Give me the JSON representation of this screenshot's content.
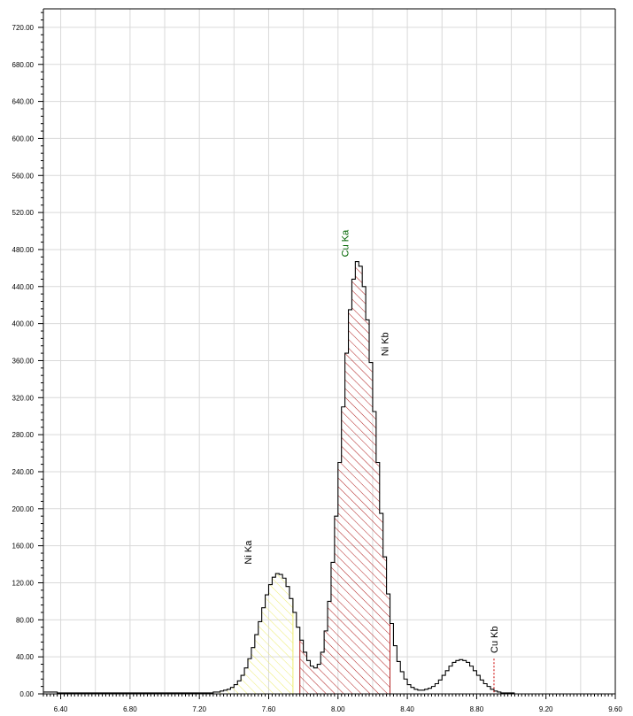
{
  "chart_data": {
    "type": "histogram",
    "title": "",
    "xlabel": "",
    "ylabel": "",
    "xlim": [
      6.3,
      9.6
    ],
    "ylim": [
      0,
      740
    ],
    "x_tick_labels": [
      "6.40",
      "6.80",
      "7.20",
      "7.60",
      "8.00",
      "8.40",
      "8.80",
      "9.20",
      "9.60"
    ],
    "x_ticks": [
      6.4,
      6.8,
      7.2,
      7.6,
      8.0,
      8.4,
      8.8,
      9.2,
      9.6
    ],
    "y_tick_labels": [
      "0.00",
      "40.00",
      "80.00",
      "120.00",
      "160.00",
      "200.00",
      "240.00",
      "280.00",
      "320.00",
      "360.00",
      "400.00",
      "440.00",
      "480.00",
      "520.00",
      "560.00",
      "600.00",
      "640.00",
      "680.00",
      "720.00"
    ],
    "y_ticks": [
      0,
      40,
      80,
      120,
      160,
      200,
      240,
      280,
      320,
      360,
      400,
      440,
      480,
      520,
      560,
      600,
      640,
      680,
      720
    ],
    "bin_width": 0.02,
    "x_start": 6.3,
    "counts": [
      2,
      2,
      2,
      2,
      1,
      1,
      1,
      1,
      1,
      1,
      1,
      1,
      1,
      1,
      1,
      1,
      1,
      1,
      1,
      1,
      1,
      1,
      1,
      1,
      1,
      1,
      1,
      1,
      1,
      1,
      1,
      1,
      1,
      1,
      1,
      1,
      1,
      1,
      1,
      1,
      1,
      1,
      1,
      1,
      1,
      1,
      1,
      1,
      1,
      2,
      2,
      3,
      4,
      5,
      7,
      10,
      14,
      20,
      28,
      38,
      50,
      64,
      78,
      93,
      107,
      118,
      126,
      130,
      129,
      125,
      116,
      103,
      88,
      72,
      58,
      45,
      36,
      30,
      28,
      32,
      45,
      68,
      100,
      142,
      192,
      250,
      310,
      368,
      415,
      448,
      467,
      462,
      440,
      404,
      358,
      305,
      250,
      195,
      148,
      108,
      76,
      52,
      35,
      24,
      16,
      10,
      7,
      5,
      4,
      4,
      5,
      6,
      8,
      11,
      15,
      20,
      25,
      30,
      34,
      36,
      37,
      36,
      34,
      30,
      25,
      20,
      15,
      11,
      8,
      5,
      3,
      2,
      1,
      1,
      1,
      1
    ],
    "regions": [
      {
        "name": "Ni Ka",
        "from": 7.2,
        "to": 7.74,
        "color": "#eded73"
      },
      {
        "name": "Cu Ka",
        "from": 7.78,
        "to": 8.3,
        "color": "#b22222"
      }
    ],
    "peaks": [
      {
        "label": "Ni Ka",
        "x": 7.48,
        "y": 140,
        "color": "#000000",
        "line": false
      },
      {
        "label": "Cu Ka",
        "x": 8.04,
        "y": 472,
        "color": "#006400",
        "line": false
      },
      {
        "label": "Ni Kb",
        "x": 8.27,
        "y": 365,
        "color": "#000000",
        "line": false
      },
      {
        "label": "Cu Kb",
        "x": 8.9,
        "y": 44,
        "color": "#000000",
        "line": true,
        "line_color": "#cc0000"
      }
    ]
  }
}
